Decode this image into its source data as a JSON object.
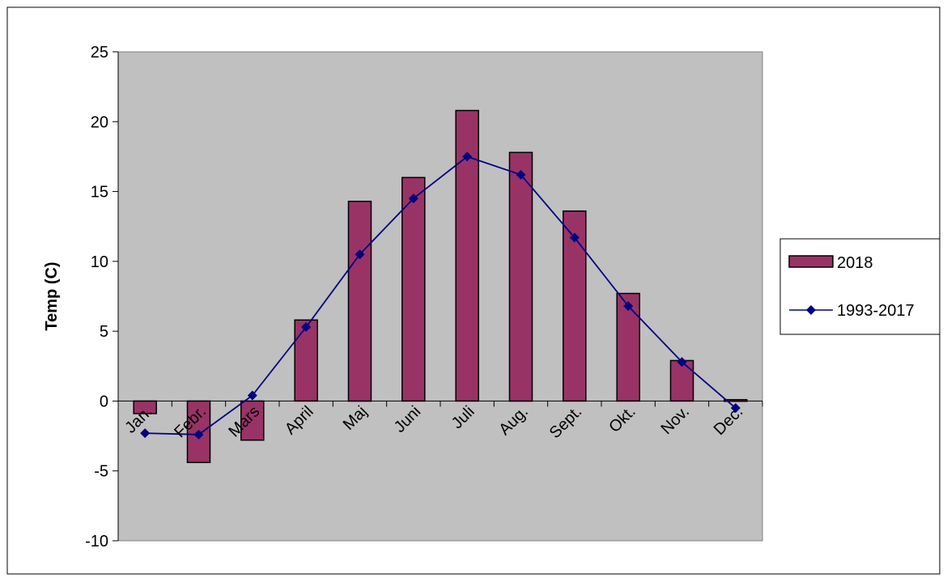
{
  "chart_data": {
    "type": "bar",
    "categories": [
      "Jan.",
      "Febr.",
      "Mars",
      "April",
      "Maj",
      "Juni",
      "Juli",
      "Aug.",
      "Sept.",
      "Okt.",
      "Nov.",
      "Dec."
    ],
    "series": [
      {
        "name": "2018",
        "type": "bar",
        "color": "#993366",
        "values": [
          -0.9,
          -4.4,
          -2.8,
          5.8,
          14.3,
          16.0,
          20.8,
          17.8,
          13.6,
          7.7,
          2.9,
          0.1
        ]
      },
      {
        "name": "1993-2017",
        "type": "line",
        "color": "#000080",
        "values": [
          -2.3,
          -2.4,
          0.4,
          5.3,
          10.5,
          14.5,
          17.5,
          16.2,
          11.7,
          6.8,
          2.8,
          -0.5
        ]
      }
    ],
    "ylabel": "Temp (C)",
    "ylim": [
      -10,
      25
    ],
    "yticks": [
      -10,
      -5,
      0,
      5,
      10,
      15,
      20,
      25
    ],
    "plot_background": "#c0c0c0",
    "grid": false,
    "legend": "right"
  }
}
